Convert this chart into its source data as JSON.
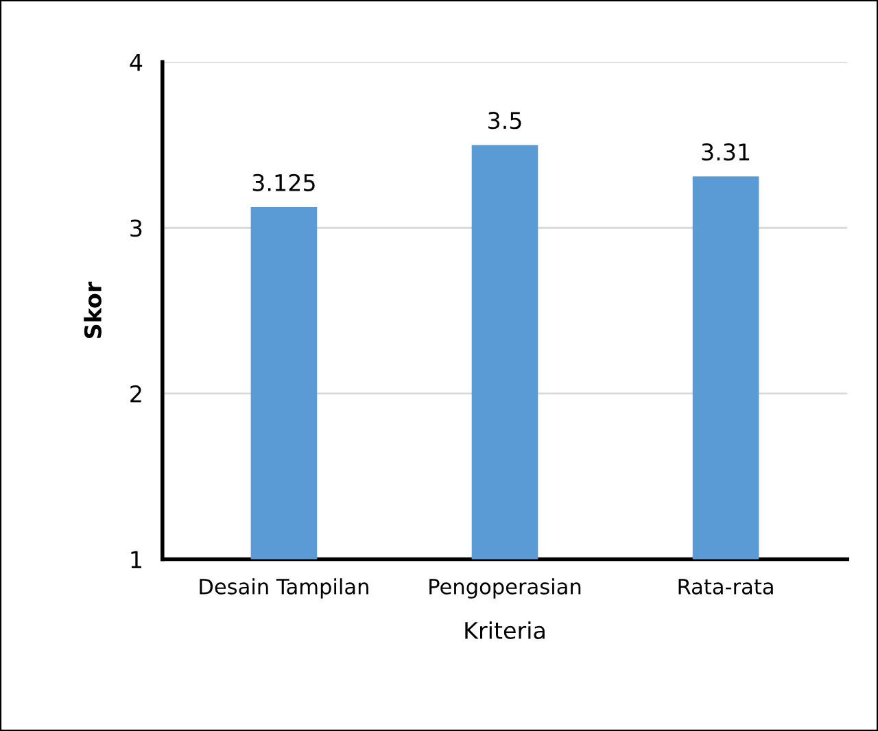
{
  "chart_data": {
    "type": "bar",
    "xlabel": "Kriteria",
    "ylabel": "Skor",
    "categories": [
      "Desain Tampilan",
      "Pengoperasian",
      "Rata-rata"
    ],
    "values": [
      3.125,
      3.5,
      3.31
    ],
    "color": "#5b9bd5",
    "ylim": [
      1,
      4
    ],
    "yticks": [
      1,
      2,
      3,
      4
    ],
    "grid": "y",
    "data_labels": true
  }
}
